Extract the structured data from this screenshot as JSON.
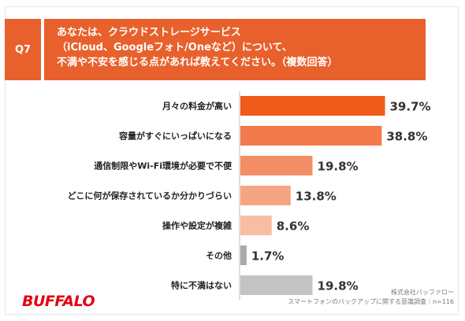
{
  "question": {
    "badge": "Q7",
    "lines": [
      "あなたは、クラウドストレージサービス",
      "（iCloud、Googleフォト/Oneなど）について、",
      "不満や不安を感じる点があれば教えてください。（複数回答）"
    ]
  },
  "chart_data": {
    "type": "bar",
    "orientation": "horizontal",
    "categories": [
      "月々の料金が高い",
      "容量がすぐにいっぱいになる",
      "通信制限やWi-Fi環境が必要で不便",
      "どこに何が保存されているか分かりづらい",
      "操作や設定が複雑",
      "その他",
      "特に不満はない"
    ],
    "values": [
      39.7,
      38.8,
      19.8,
      13.8,
      8.6,
      1.7,
      19.8
    ],
    "value_labels": [
      "39.7%",
      "38.8%",
      "19.8%",
      "13.8%",
      "8.6%",
      "1.7%",
      "19.8%"
    ],
    "bar_colors": [
      "#f05a1a",
      "#f37a4c",
      "#f48e66",
      "#f6a582",
      "#f9bda3",
      "#aaaaaa",
      "#c3c3c3"
    ],
    "xlim": [
      0,
      45
    ],
    "grid": false
  },
  "brand": {
    "logo_text": "BUFFALO",
    "logo_color": "#e50012"
  },
  "source": {
    "line1": "株式会社バッファロー",
    "line2": "スマートフォンのバックアップに関する意識調査｜n=116"
  }
}
